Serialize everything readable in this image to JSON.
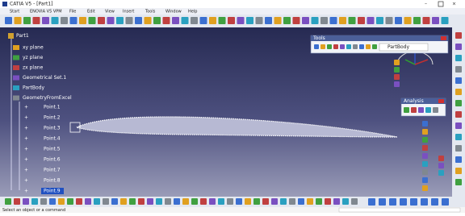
{
  "window": {
    "title": "CATIA V5 - [Part1]"
  },
  "menu": [
    "Start",
    "ENOVIA V5 VPM",
    "File",
    "Edit",
    "View",
    "Insert",
    "Tools",
    "Window",
    "Help"
  ],
  "tree": {
    "root": "Part1",
    "items": [
      "xy plane",
      "yz plane",
      "zx plane",
      "Geometrical Set.1",
      "PartBody",
      "GeometryFromExcel"
    ],
    "points": [
      "Point.1",
      "Point.2",
      "Point.3",
      "Point.4",
      "Point.5",
      "Point.6",
      "Point.7",
      "Point.8",
      "Point.9"
    ]
  },
  "tools_panel": {
    "title": "Tools",
    "dropdown": "PartBody"
  },
  "analysis_panel": {
    "title": "Analysis"
  },
  "status": "Select an object or a command"
}
